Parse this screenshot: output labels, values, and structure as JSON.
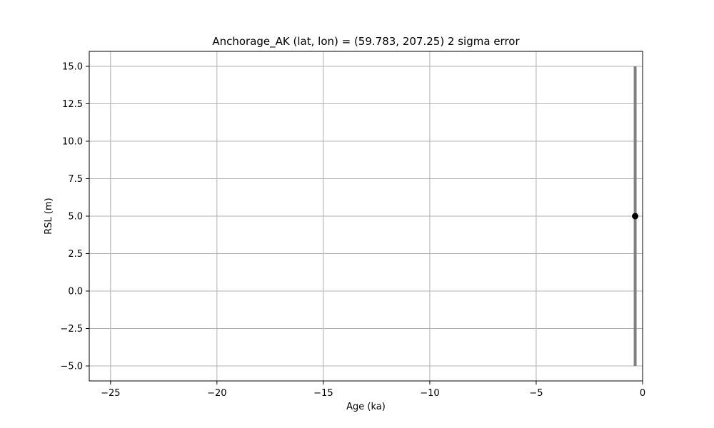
{
  "chart_data": {
    "type": "scatter",
    "title": "Anchorage_AK (lat, lon) = (59.783, 207.25)  2 sigma error",
    "xlabel": "Age (ka)",
    "ylabel": "RSL (m)",
    "xlim": [
      -26,
      0
    ],
    "ylim": [
      -6,
      16
    ],
    "grid": true,
    "x_ticks": [
      {
        "value": -25,
        "label": "−25"
      },
      {
        "value": -20,
        "label": "−20"
      },
      {
        "value": -15,
        "label": "−15"
      },
      {
        "value": -10,
        "label": "−10"
      },
      {
        "value": -5,
        "label": "−5"
      },
      {
        "value": 0,
        "label": "0"
      }
    ],
    "y_ticks": [
      {
        "value": -5,
        "label": "−5.0"
      },
      {
        "value": -2.5,
        "label": "−2.5"
      },
      {
        "value": 0,
        "label": "0.0"
      },
      {
        "value": 2.5,
        "label": "2.5"
      },
      {
        "value": 5,
        "label": "5.0"
      },
      {
        "value": 7.5,
        "label": "7.5"
      },
      {
        "value": 10,
        "label": "10.0"
      },
      {
        "value": 12.5,
        "label": "12.5"
      },
      {
        "value": 15,
        "label": "15.0"
      }
    ],
    "points": [
      {
        "x": -0.35,
        "y": 5.0,
        "y_low": -5.0,
        "y_high": 15.0
      }
    ],
    "colors": {
      "point": "#000000",
      "errorbar": "#808080",
      "grid": "#b0b0b0"
    }
  }
}
